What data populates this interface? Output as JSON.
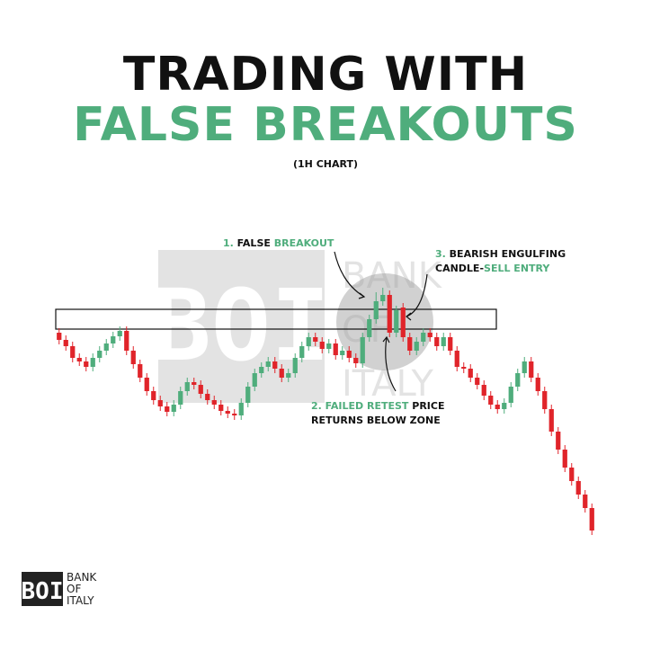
{
  "chart_data": {
    "type": "candlestick",
    "title": [
      "TRADING WITH",
      "FALSE BREAKOUTS"
    ],
    "subtitle": "(1H CHART)",
    "up_color": "#4fad7c",
    "down_color": "#e0242a",
    "accent_color": "#4fad7c",
    "ylim": [
      100,
      420
    ],
    "zone": [
      354,
      376
    ],
    "open": [
      350,
      342,
      335,
      322,
      318,
      312,
      322,
      330,
      338,
      346,
      352,
      330,
      315,
      300,
      285,
      275,
      268,
      262,
      270,
      285,
      295,
      292,
      282,
      275,
      270,
      263,
      260,
      258,
      272,
      290,
      305,
      312,
      318,
      310,
      300,
      305,
      322,
      335,
      345,
      340,
      332,
      338,
      325,
      330,
      322,
      316,
      345,
      365,
      385,
      392,
      350,
      378,
      345,
      330,
      340,
      350,
      345,
      335,
      345,
      330,
      312,
      310,
      300,
      292,
      280,
      270,
      265,
      272,
      290,
      305,
      318,
      300,
      285,
      265,
      240,
      220,
      200,
      185,
      170,
      155
    ],
    "high": [
      355,
      347,
      340,
      327,
      323,
      327,
      335,
      343,
      351,
      357,
      357,
      335,
      320,
      305,
      290,
      280,
      273,
      275,
      290,
      300,
      300,
      297,
      287,
      280,
      275,
      268,
      265,
      277,
      295,
      310,
      317,
      323,
      323,
      315,
      310,
      327,
      340,
      350,
      350,
      345,
      343,
      343,
      335,
      335,
      327,
      350,
      370,
      395,
      400,
      397,
      380,
      383,
      350,
      345,
      355,
      355,
      350,
      350,
      350,
      335,
      317,
      315,
      305,
      297,
      285,
      275,
      277,
      295,
      310,
      323,
      323,
      305,
      290,
      270,
      245,
      225,
      205,
      190,
      175,
      160
    ],
    "low": [
      337,
      330,
      317,
      313,
      307,
      307,
      317,
      325,
      333,
      341,
      325,
      310,
      295,
      280,
      270,
      263,
      257,
      257,
      265,
      280,
      287,
      277,
      270,
      265,
      258,
      255,
      253,
      253,
      267,
      285,
      300,
      307,
      305,
      295,
      295,
      300,
      317,
      330,
      335,
      327,
      327,
      320,
      320,
      317,
      311,
      311,
      340,
      360,
      380,
      345,
      345,
      340,
      325,
      325,
      335,
      340,
      330,
      330,
      325,
      307,
      305,
      295,
      287,
      275,
      265,
      260,
      260,
      267,
      285,
      300,
      295,
      280,
      260,
      235,
      215,
      195,
      180,
      165,
      150,
      125
    ],
    "close": [
      342,
      335,
      322,
      318,
      312,
      322,
      330,
      338,
      346,
      352,
      330,
      315,
      300,
      285,
      275,
      268,
      262,
      270,
      285,
      295,
      292,
      282,
      275,
      270,
      263,
      260,
      258,
      272,
      290,
      305,
      312,
      318,
      310,
      300,
      305,
      322,
      335,
      345,
      340,
      332,
      338,
      325,
      330,
      322,
      316,
      345,
      365,
      385,
      392,
      350,
      375,
      345,
      330,
      340,
      350,
      345,
      335,
      345,
      330,
      312,
      310,
      300,
      292,
      280,
      270,
      265,
      272,
      290,
      305,
      318,
      300,
      285,
      265,
      240,
      220,
      200,
      185,
      170,
      155,
      130
    ],
    "annotations": [
      {
        "lines": [
          [
            {
              "text": "1. ",
              "accent": true
            },
            {
              "text": "FALSE ",
              "accent": false
            },
            {
              "text": "BREAKOUT",
              "accent": true
            }
          ]
        ]
      },
      {
        "lines": [
          [
            {
              "text": "2. FAILED RETEST",
              "accent": true
            },
            {
              "text": " PRICE",
              "accent": false
            }
          ],
          [
            {
              "text": "RETURNS BELOW ZONE",
              "accent": false
            }
          ]
        ]
      },
      {
        "lines": [
          [
            {
              "text": "3. ",
              "accent": true
            },
            {
              "text": "BEARISH ENGULFING",
              "accent": false
            }
          ],
          [
            {
              "text": "CANDLE-",
              "accent": false
            },
            {
              "text": "SELL ENTRY",
              "accent": true
            }
          ]
        ]
      }
    ]
  },
  "logo": {
    "mark": "BOI",
    "lines": [
      "BANK",
      "OF",
      "ITALY"
    ]
  }
}
